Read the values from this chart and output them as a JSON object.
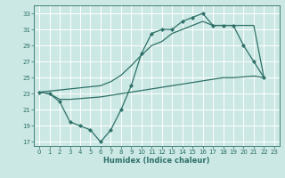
{
  "xlabel": "Humidex (Indice chaleur)",
  "bg_color": "#cce8e4",
  "grid_color": "#ffffff",
  "line_color": "#2d7068",
  "xlim": [
    -0.5,
    23.5
  ],
  "ylim": [
    16.5,
    34.0
  ],
  "xticks": [
    0,
    1,
    2,
    3,
    4,
    5,
    6,
    7,
    8,
    9,
    10,
    11,
    12,
    13,
    14,
    15,
    16,
    17,
    18,
    19,
    20,
    21,
    22,
    23
  ],
  "yticks": [
    17,
    19,
    21,
    23,
    25,
    27,
    29,
    31,
    33
  ],
  "line1_x": [
    0,
    1,
    2,
    3,
    4,
    5,
    6,
    7,
    8,
    9,
    10,
    11,
    12,
    13,
    14,
    15,
    16,
    17,
    18,
    19,
    20,
    21,
    22
  ],
  "line1_y": [
    23.2,
    23.0,
    22.0,
    19.5,
    19.0,
    18.5,
    17.0,
    18.5,
    21.0,
    24.0,
    28.0,
    30.5,
    31.0,
    31.0,
    32.0,
    32.5,
    33.0,
    31.5,
    31.5,
    31.5,
    29.0,
    27.0,
    25.0
  ],
  "line2_x": [
    0,
    6,
    7,
    8,
    9,
    10,
    11,
    12,
    13,
    14,
    15,
    16,
    17,
    18,
    19,
    20,
    21,
    22
  ],
  "line2_y": [
    23.2,
    24.0,
    24.5,
    25.3,
    26.5,
    27.8,
    29.0,
    29.5,
    30.5,
    31.0,
    31.5,
    32.0,
    31.5,
    31.5,
    31.5,
    31.5,
    31.5,
    25.0
  ],
  "line3_x": [
    0,
    1,
    2,
    3,
    4,
    5,
    6,
    7,
    8,
    9,
    10,
    11,
    12,
    13,
    14,
    15,
    16,
    17,
    18,
    19,
    20,
    21,
    22
  ],
  "line3_y": [
    23.2,
    23.0,
    22.3,
    22.3,
    22.4,
    22.5,
    22.6,
    22.8,
    23.0,
    23.2,
    23.4,
    23.6,
    23.8,
    24.0,
    24.2,
    24.4,
    24.6,
    24.8,
    25.0,
    25.0,
    25.1,
    25.2,
    25.0
  ],
  "xlabel_fontsize": 6,
  "tick_fontsize": 5
}
